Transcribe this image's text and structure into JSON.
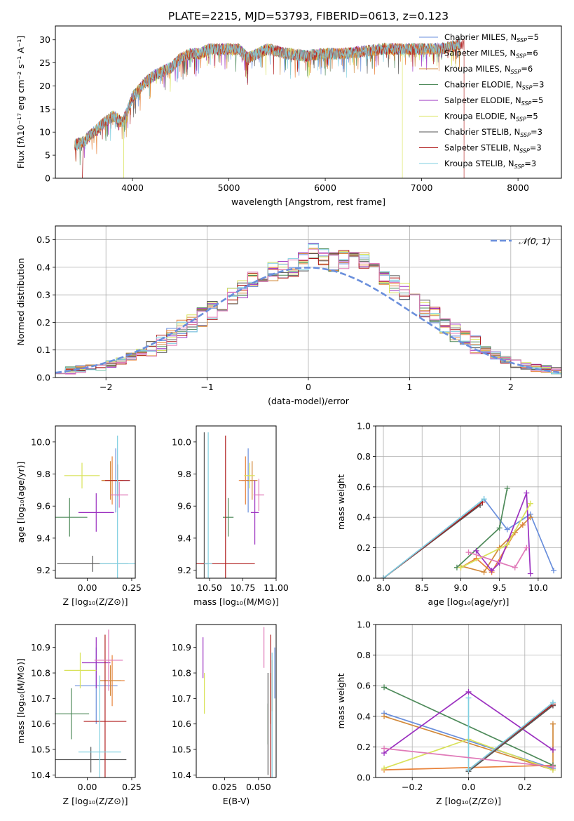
{
  "title": "PLATE=2215, MJD=53793, FIBERID=0613, z=0.123",
  "colors": {
    "chabrier_miles": "#6a8fdc",
    "salpeter_miles": "#e8823a",
    "kroupa_miles": "#d2893a",
    "chabrier_elodie": "#4e8a5a",
    "salpeter_elodie": "#9b30c0",
    "kroupa_elodie": "#d9e25a",
    "chabrier_stelib": "#555555",
    "salpeter_stelib": "#b01e1e",
    "kroupa_stelib": "#7fcfe0",
    "extra_pink": "#e07ab8",
    "normal": "#6a8fdc"
  },
  "chart_data": [
    {
      "type": "line",
      "id": "spectrum",
      "xlabel": "wavelength [Angstrom, rest frame]",
      "ylabel": "Flux [fλ10⁻¹⁷ erg cm⁻² s⁻¹ A⁻¹]",
      "xlim": [
        3200,
        8450
      ],
      "ylim": [
        0,
        33
      ],
      "xticks": [
        "4000",
        "5000",
        "6000",
        "7000",
        "8000"
      ],
      "yticks": [
        "0",
        "5",
        "10",
        "15",
        "20",
        "25",
        "30"
      ],
      "grid": false,
      "legend_position": "top-right",
      "legend": [
        {
          "label": "Chabrier MILES, N",
          "sub": "SSP",
          "suffix": "=5"
        },
        {
          "label": "Salpeter MILES, N",
          "sub": "SSP",
          "suffix": "=6"
        },
        {
          "label": "Kroupa MILES, N",
          "sub": "SSP",
          "suffix": "=6"
        },
        {
          "label": "Chabrier ELODIE, N",
          "sub": "SSP",
          "suffix": "=3"
        },
        {
          "label": "Salpeter ELODIE, N",
          "sub": "SSP",
          "suffix": "=5"
        },
        {
          "label": "Kroupa ELODIE, N",
          "sub": "SSP",
          "suffix": "=5"
        },
        {
          "label": "Chabrier STELIB, N",
          "sub": "SSP",
          "suffix": "=3"
        },
        {
          "label": "Salpeter STELIB, N",
          "sub": "SSP",
          "suffix": "=3"
        },
        {
          "label": "Kroupa STELIB, N",
          "sub": "SSP",
          "suffix": "=3"
        }
      ],
      "continuum": [
        [
          3400,
          7.2
        ],
        [
          3500,
          8
        ],
        [
          3600,
          10
        ],
        [
          3700,
          12
        ],
        [
          3800,
          13.5
        ],
        [
          3900,
          12
        ],
        [
          4000,
          17.5
        ],
        [
          4100,
          20
        ],
        [
          4200,
          22
        ],
        [
          4300,
          23
        ],
        [
          4400,
          24
        ],
        [
          4500,
          26
        ],
        [
          4600,
          27
        ],
        [
          4700,
          27
        ],
        [
          4800,
          28
        ],
        [
          4900,
          28
        ],
        [
          5000,
          28
        ],
        [
          5100,
          28
        ],
        [
          5200,
          26
        ],
        [
          5300,
          27
        ],
        [
          5400,
          28
        ],
        [
          5600,
          27
        ],
        [
          5800,
          26.5
        ],
        [
          6000,
          27
        ],
        [
          6200,
          27
        ],
        [
          6400,
          27.5
        ],
        [
          6600,
          28
        ],
        [
          6800,
          28
        ],
        [
          7000,
          28
        ],
        [
          7200,
          28
        ],
        [
          7400,
          29
        ]
      ],
      "series_end_x": [
        7400,
        7400,
        7400,
        7400,
        7400,
        7400,
        7400,
        7440,
        7400
      ]
    },
    {
      "type": "histogram",
      "id": "residuals",
      "xlabel": "(data-model)/error",
      "ylabel": "Normed distribution",
      "xlim": [
        -2.5,
        2.5
      ],
      "ylim": [
        0,
        0.55
      ],
      "xticks": [
        "−2",
        "−1",
        "0",
        "1",
        "2"
      ],
      "yticks": [
        "0.0",
        "0.1",
        "0.2",
        "0.3",
        "0.4",
        "0.5"
      ],
      "grid": true,
      "legend_position": "top-right",
      "legend": [
        {
          "label": "𝒩(0, 1)"
        }
      ],
      "bins": [
        -2.5,
        -2.4,
        -2.3,
        -2.2,
        -2.1,
        -2.0,
        -1.9,
        -1.8,
        -1.7,
        -1.6,
        -1.5,
        -1.4,
        -1.3,
        -1.2,
        -1.1,
        -1.0,
        -0.9,
        -0.8,
        -0.7,
        -0.6,
        -0.5,
        -0.4,
        -0.3,
        -0.2,
        -0.1,
        0.0,
        0.1,
        0.2,
        0.3,
        0.4,
        0.5,
        0.6,
        0.7,
        0.8,
        0.9,
        1.0,
        1.1,
        1.2,
        1.3,
        1.4,
        1.5,
        1.6,
        1.7,
        1.8,
        1.9,
        2.0,
        2.1,
        2.2,
        2.3,
        2.4,
        2.5
      ],
      "hist_base": [
        0.02,
        0.025,
        0.03,
        0.035,
        0.04,
        0.05,
        0.06,
        0.075,
        0.09,
        0.105,
        0.125,
        0.15,
        0.175,
        0.2,
        0.22,
        0.245,
        0.27,
        0.3,
        0.32,
        0.35,
        0.37,
        0.385,
        0.39,
        0.4,
        0.42,
        0.46,
        0.44,
        0.42,
        0.43,
        0.44,
        0.42,
        0.39,
        0.36,
        0.34,
        0.31,
        0.28,
        0.25,
        0.22,
        0.19,
        0.16,
        0.14,
        0.12,
        0.1,
        0.08,
        0.065,
        0.05,
        0.04,
        0.035,
        0.03,
        0.025
      ],
      "normal": {
        "mu": 0,
        "sigma": 1
      }
    },
    {
      "type": "scatter",
      "id": "age_vs_Z",
      "xlabel": "Z [log₁₀(Z/Z⊙)]",
      "ylabel": "age  [log₁₀(age/yr)]",
      "xlim": [
        -0.18,
        0.27
      ],
      "ylim": [
        9.15,
        10.1
      ],
      "xticks": [
        "0.00",
        "0.25"
      ],
      "yticks": [
        "9.2",
        "9.4",
        "9.6",
        "9.8",
        "10.0"
      ],
      "points": [
        {
          "x": 0.16,
          "y": 9.76,
          "xe": 0.08,
          "ye": 0.2,
          "c": 0
        },
        {
          "x": 0.14,
          "y": 9.76,
          "xe": 0.06,
          "ye": 0.15,
          "c": 1
        },
        {
          "x": 0.13,
          "y": 9.76,
          "xe": 0.05,
          "ye": 0.12,
          "c": 2
        },
        {
          "x": -0.1,
          "y": 9.53,
          "xe": 0.1,
          "ye": 0.12,
          "c": 3
        },
        {
          "x": 0.05,
          "y": 9.56,
          "xe": 0.1,
          "ye": 0.12,
          "c": 4
        },
        {
          "x": -0.03,
          "y": 9.79,
          "xe": 0.1,
          "ye": 0.08,
          "c": 5
        },
        {
          "x": 0.03,
          "y": 9.24,
          "xe": 0.2,
          "ye": 0.05,
          "c": 6
        },
        {
          "x": 0.17,
          "y": 9.76,
          "xe": 0.07,
          "ye": 0.1,
          "c": 7
        },
        {
          "x": 0.17,
          "y": 9.24,
          "xe": 0.1,
          "ye": 0.8,
          "c": 8
        },
        {
          "x": 0.18,
          "y": 9.67,
          "xe": 0.05,
          "ye": 0.08,
          "c": 9
        }
      ]
    },
    {
      "type": "scatter",
      "id": "age_vs_mass",
      "xlabel": "mass [log₁₀(M/M⊙)]",
      "ylabel": "",
      "xlim": [
        10.4,
        11.0
      ],
      "ylim": [
        9.15,
        10.1
      ],
      "xticks": [
        "10.50",
        "10.75",
        "11.00"
      ],
      "yticks": [
        "9.2",
        "9.4",
        "9.6",
        "9.8",
        "10.0"
      ],
      "points": [
        {
          "x": 10.79,
          "y": 9.76,
          "xe": 0.05,
          "ye": 0.2,
          "c": 0
        },
        {
          "x": 10.77,
          "y": 9.76,
          "xe": 0.05,
          "ye": 0.15,
          "c": 1
        },
        {
          "x": 10.82,
          "y": 9.76,
          "xe": 0.04,
          "ye": 0.12,
          "c": 2
        },
        {
          "x": 10.64,
          "y": 9.53,
          "xe": 0.04,
          "ye": 0.12,
          "c": 3
        },
        {
          "x": 10.84,
          "y": 9.56,
          "xe": 0.03,
          "ye": 0.2,
          "c": 4
        },
        {
          "x": 10.8,
          "y": 9.79,
          "xe": 0.04,
          "ye": 0.08,
          "c": 5
        },
        {
          "x": 10.46,
          "y": 9.24,
          "xe": 0.03,
          "ye": 0.82,
          "c": 6
        },
        {
          "x": 10.62,
          "y": 9.24,
          "xe": 0.22,
          "ye": 0.8,
          "c": 7
        },
        {
          "x": 10.49,
          "y": 9.24,
          "xe": 0.03,
          "ye": 0.82,
          "c": 8
        },
        {
          "x": 10.87,
          "y": 9.67,
          "xe": 0.04,
          "ye": 0.1,
          "c": 9
        }
      ]
    },
    {
      "type": "line",
      "id": "weight_vs_age",
      "xlabel": "age  [log₁₀(age/yr)]",
      "ylabel": "mass weight",
      "xlim": [
        7.9,
        10.3
      ],
      "ylim": [
        0,
        1.0
      ],
      "xticks": [
        "8.0",
        "8.5",
        "9.0",
        "9.5",
        "10.0"
      ],
      "yticks": [
        "0.0",
        "0.2",
        "0.4",
        "0.6",
        "0.8",
        "1.0"
      ],
      "grid": true,
      "series": [
        {
          "c": 0,
          "x": [
            8.0,
            9.3,
            9.6,
            9.9,
            10.2
          ],
          "y": [
            0.0,
            0.52,
            0.32,
            0.42,
            0.05
          ]
        },
        {
          "c": 1,
          "x": [
            9.0,
            9.2,
            9.4,
            9.7,
            9.8
          ],
          "y": [
            0.07,
            0.13,
            0.04,
            0.3,
            0.35
          ]
        },
        {
          "c": 2,
          "x": [
            9.0,
            9.3,
            9.5,
            9.7,
            9.9
          ],
          "y": [
            0.08,
            0.04,
            0.2,
            0.3,
            0.4
          ]
        },
        {
          "c": 3,
          "x": [
            8.95,
            9.5,
            9.6
          ],
          "y": [
            0.07,
            0.33,
            0.59
          ]
        },
        {
          "c": 4,
          "x": [
            9.2,
            9.4,
            9.5,
            9.85,
            9.9
          ],
          "y": [
            0.18,
            0.05,
            0.1,
            0.56,
            0.03
          ]
        },
        {
          "c": 5,
          "x": [
            9.0,
            9.6,
            9.9
          ],
          "y": [
            0.07,
            0.22,
            0.49
          ]
        },
        {
          "c": 6,
          "x": [
            8.0,
            9.25
          ],
          "y": [
            0.0,
            0.48
          ]
        },
        {
          "c": 7,
          "x": [
            8.0,
            9.28
          ],
          "y": [
            0.0,
            0.5
          ]
        },
        {
          "c": 8,
          "x": [
            8.0,
            9.3
          ],
          "y": [
            0.0,
            0.52
          ]
        },
        {
          "c": 9,
          "x": [
            9.1,
            9.7,
            9.85
          ],
          "y": [
            0.17,
            0.07,
            0.2
          ]
        }
      ]
    },
    {
      "type": "scatter",
      "id": "mass_vs_Z",
      "xlabel": "Z [log₁₀(Z/Z⊙)]",
      "ylabel": "mass [log₁₀(M/M⊙)]",
      "xlim": [
        -0.18,
        0.27
      ],
      "ylim": [
        10.39,
        10.99
      ],
      "xticks": [
        "0.00",
        "0.25"
      ],
      "yticks": [
        "10.4",
        "10.5",
        "10.6",
        "10.7",
        "10.8",
        "10.9"
      ],
      "points": [
        {
          "x": 0.05,
          "y": 10.75,
          "xe": 0.12,
          "ye": 0.15,
          "c": 0
        },
        {
          "x": 0.14,
          "y": 10.77,
          "xe": 0.07,
          "ye": 0.1,
          "c": 1
        },
        {
          "x": 0.13,
          "y": 10.77,
          "xe": 0.06,
          "ye": 0.06,
          "c": 2
        },
        {
          "x": -0.09,
          "y": 10.64,
          "xe": 0.1,
          "ye": 0.1,
          "c": 3
        },
        {
          "x": 0.05,
          "y": 10.84,
          "xe": 0.08,
          "ye": 0.1,
          "c": 4
        },
        {
          "x": -0.04,
          "y": 10.81,
          "xe": 0.09,
          "ye": 0.07,
          "c": 5
        },
        {
          "x": 0.02,
          "y": 10.46,
          "xe": 0.2,
          "ye": 0.05,
          "c": 6
        },
        {
          "x": 0.1,
          "y": 10.61,
          "xe": 0.12,
          "ye": 0.34,
          "c": 7
        },
        {
          "x": 0.07,
          "y": 10.49,
          "xe": 0.12,
          "ye": 0.3,
          "c": 8
        },
        {
          "x": 0.12,
          "y": 10.85,
          "xe": 0.08,
          "ye": 0.12,
          "c": 9
        }
      ]
    },
    {
      "type": "scatter",
      "id": "mass_vs_EBV",
      "xlabel": "E(B-V)",
      "ylabel": "",
      "xlim": [
        0.004,
        0.063
      ],
      "ylim": [
        10.39,
        10.99
      ],
      "xticks": [
        "0.025",
        "0.050"
      ],
      "yticks": [
        "10.4",
        "10.5",
        "10.6",
        "10.7",
        "10.8",
        "10.9"
      ],
      "points": [
        {
          "x": 0.062,
          "y": 10.8,
          "xe": 0,
          "ye": 0.1,
          "c": 0
        },
        {
          "x": 0.06,
          "y": 10.75,
          "xe": 0,
          "ye": 0.1,
          "c": 1
        },
        {
          "x": 0.059,
          "y": 10.7,
          "xe": 0,
          "ye": 0.1,
          "c": 2
        },
        {
          "x": 0.057,
          "y": 10.6,
          "xe": 0,
          "ye": 0.08,
          "c": 3
        },
        {
          "x": 0.009,
          "y": 10.86,
          "xe": 0,
          "ye": 0.08,
          "c": 4
        },
        {
          "x": 0.01,
          "y": 10.72,
          "xe": 0,
          "ye": 0.08,
          "c": 5
        },
        {
          "x": 0.057,
          "y": 10.6,
          "xe": 0,
          "ye": 0.2,
          "c": 6
        },
        {
          "x": 0.059,
          "y": 10.6,
          "xe": 0,
          "ye": 0.35,
          "c": 7
        },
        {
          "x": 0.06,
          "y": 10.6,
          "xe": 0,
          "ye": 0.28,
          "c": 8
        },
        {
          "x": 0.054,
          "y": 10.9,
          "xe": 0,
          "ye": 0.08,
          "c": 9
        }
      ]
    },
    {
      "type": "line",
      "id": "weight_vs_Z",
      "xlabel": "Z [log₁₀(Z/Z⊙)]",
      "ylabel": "mass weight",
      "xlim": [
        -0.33,
        0.33
      ],
      "ylim": [
        0,
        1.0
      ],
      "xticks": [
        "−0.2",
        "0.0",
        "0.2"
      ],
      "yticks": [
        "0.0",
        "0.2",
        "0.4",
        "0.6",
        "0.8",
        "1.0"
      ],
      "grid": true,
      "series": [
        {
          "c": 0,
          "x": [
            -0.3,
            0.3
          ],
          "y": [
            0.42,
            0.06
          ]
        },
        {
          "c": 1,
          "x": [
            -0.3,
            0.3
          ],
          "y": [
            0.05,
            0.08
          ]
        },
        {
          "c": 2,
          "x": [
            -0.3,
            0.3,
            0.3
          ],
          "y": [
            0.4,
            0.05,
            0.35
          ]
        },
        {
          "c": 3,
          "x": [
            -0.3,
            0.3
          ],
          "y": [
            0.59,
            0.08
          ]
        },
        {
          "c": 4,
          "x": [
            -0.3,
            0.0,
            0.3
          ],
          "y": [
            0.16,
            0.56,
            0.18
          ]
        },
        {
          "c": 5,
          "x": [
            -0.3,
            0.0,
            0.3
          ],
          "y": [
            0.06,
            0.25,
            0.05
          ]
        },
        {
          "c": 6,
          "x": [
            0.0,
            0.3
          ],
          "y": [
            0.04,
            0.47
          ]
        },
        {
          "c": 7,
          "x": [
            0.0,
            0.3
          ],
          "y": [
            0.05,
            0.48
          ]
        },
        {
          "c": 8,
          "x": [
            0.0,
            0.0,
            0.3
          ],
          "y": [
            0.52,
            0.05,
            0.49
          ]
        },
        {
          "c": 9,
          "x": [
            -0.3,
            0.3
          ],
          "y": [
            0.19,
            0.07
          ]
        }
      ]
    }
  ]
}
